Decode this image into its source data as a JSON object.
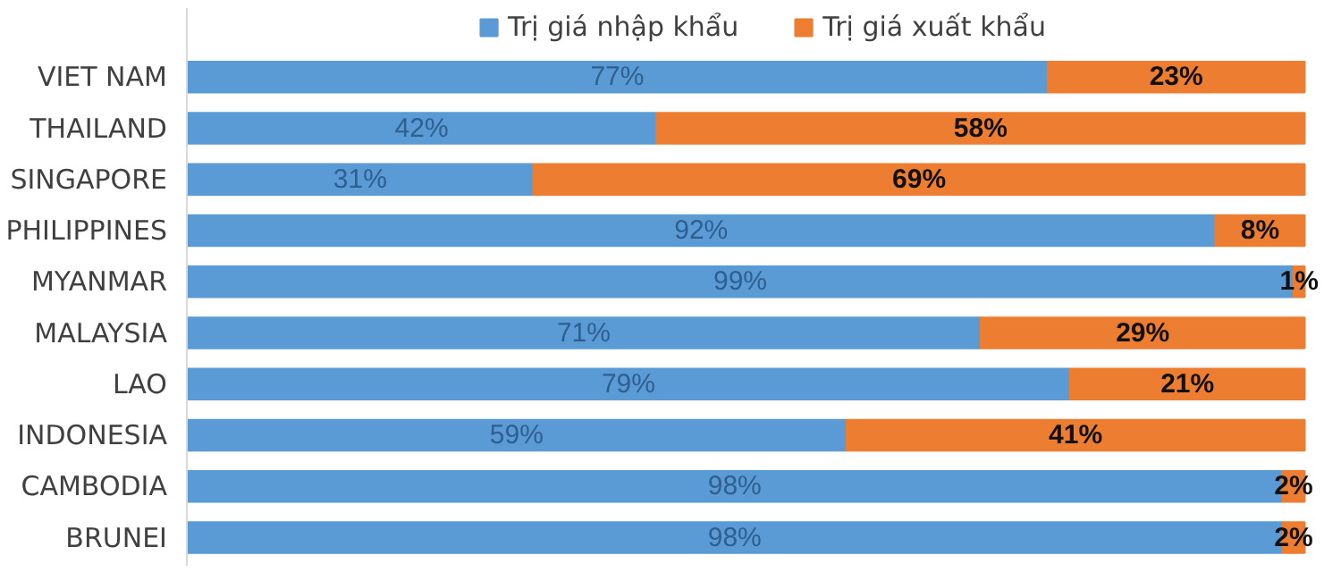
{
  "chart_data": {
    "type": "bar",
    "orientation": "horizontal",
    "stacked": true,
    "legend": "top",
    "grid": false,
    "categories": [
      "VIET NAM",
      "THAILAND",
      "SINGAPORE",
      "PHILIPPINES",
      "MYANMAR",
      "MALAYSIA",
      "LAO",
      "INDONESIA",
      "CAMBODIA",
      "BRUNEI"
    ],
    "series": [
      {
        "name": "Trị giá nhập khẩu",
        "color": "#5b9bd5",
        "values": [
          77,
          42,
          31,
          92,
          99,
          71,
          79,
          59,
          98,
          98
        ],
        "value_labels": [
          "77%",
          "42%",
          "31%",
          "92%",
          "99%",
          "71%",
          "79%",
          "59%",
          "98%",
          "98%"
        ]
      },
      {
        "name": "Trị giá xuất khẩu",
        "color": "#ed7d31",
        "values": [
          23,
          58,
          69,
          8,
          1,
          29,
          21,
          41,
          2,
          2
        ],
        "value_labels": [
          "23%",
          "58%",
          "69%",
          "8%",
          "1%",
          "29%",
          "21%",
          "41%",
          "2%",
          "2%"
        ]
      }
    ]
  }
}
